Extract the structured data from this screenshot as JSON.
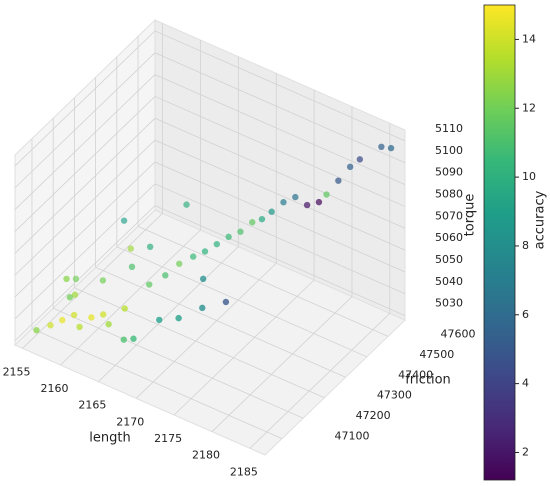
{
  "chart_data": {
    "type": "scatter3d",
    "xlabel": "length",
    "ylabel": "friction",
    "zlabel": "torque",
    "colorbar_label": "accuracy",
    "xlim": [
      2154,
      2187
    ],
    "xticks": [
      2155,
      2160,
      2165,
      2170,
      2175,
      2180,
      2185
    ],
    "ylim": [
      47020,
      47680
    ],
    "yticks": [
      47100,
      47200,
      47300,
      47400,
      47500,
      47600
    ],
    "zlim": [
      5028,
      5115
    ],
    "zticks": [
      5030,
      5040,
      5050,
      5060,
      5070,
      5080,
      5090,
      5100,
      5110
    ],
    "clim": [
      1.2,
      15
    ],
    "cticks": [
      2,
      4,
      6,
      8,
      10,
      12,
      14
    ],
    "grid": true,
    "x": [
      2157,
      2158,
      2159,
      2160,
      2161,
      2162,
      2163,
      2158,
      2156,
      2157,
      2160,
      2164,
      2165,
      2166,
      2167,
      2168,
      2169,
      2170,
      2171,
      2172,
      2173,
      2174,
      2175,
      2176,
      2177,
      2178,
      2179,
      2180,
      2181,
      2182,
      2183,
      2185,
      2186,
      2168,
      2170,
      2172,
      2174,
      2165,
      2166,
      2163,
      2162,
      2164,
      2160,
      2159,
      2158,
      2166,
      2171
    ],
    "y": [
      47080,
      47100,
      47120,
      47110,
      47130,
      47150,
      47140,
      47160,
      47050,
      47200,
      47220,
      47180,
      47260,
      47300,
      47330,
      47360,
      47380,
      47400,
      47420,
      47440,
      47460,
      47470,
      47480,
      47500,
      47520,
      47540,
      47560,
      47560,
      47580,
      47600,
      47610,
      47640,
      47650,
      47200,
      47220,
      47260,
      47300,
      47140,
      47150,
      47250,
      47280,
      47300,
      47320,
      47100,
      47120,
      47400,
      47300
    ],
    "z": [
      5036,
      5038,
      5040,
      5037,
      5041,
      5042,
      5040,
      5044,
      5035,
      5046,
      5048,
      5045,
      5050,
      5052,
      5056,
      5058,
      5060,
      5063,
      5066,
      5068,
      5072,
      5074,
      5078,
      5082,
      5084,
      5080,
      5081,
      5086,
      5092,
      5098,
      5102,
      5108,
      5108,
      5044,
      5046,
      5050,
      5052,
      5036,
      5037,
      5056,
      5060,
      5062,
      5066,
      5050,
      5055,
      5075,
      5058
    ],
    "c": [
      14,
      14.5,
      14,
      13.5,
      14.5,
      14,
      13,
      13,
      12.5,
      12,
      12,
      13.5,
      11.5,
      11,
      12,
      10.5,
      10,
      10,
      10.5,
      11,
      11.5,
      9.5,
      8.5,
      7,
      6.5,
      2,
      1.5,
      11.5,
      5,
      5.5,
      4.5,
      5.5,
      6,
      9,
      9,
      8,
      5,
      11,
      10.5,
      11,
      13,
      10,
      9,
      12,
      12.5,
      10,
      8
    ]
  }
}
